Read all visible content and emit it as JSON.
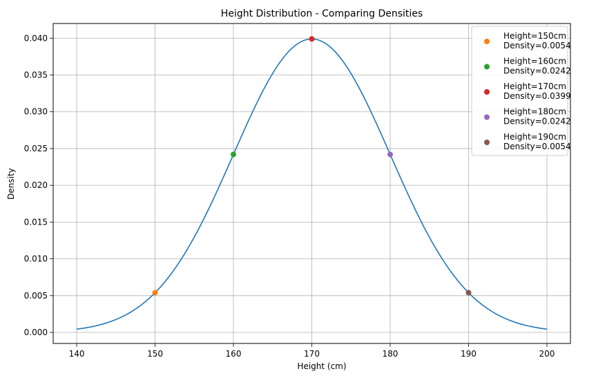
{
  "chart_data": {
    "type": "line",
    "title": "Height Distribution - Comparing Densities",
    "xlabel": "Height (cm)",
    "ylabel": "Density",
    "xlim": [
      137.0,
      203.0
    ],
    "ylim": [
      -0.0015,
      0.042
    ],
    "grid": true,
    "legend_position": "top-right",
    "x_ticks": [
      140,
      150,
      160,
      170,
      180,
      190,
      200
    ],
    "x_tick_labels": [
      "140",
      "150",
      "160",
      "170",
      "180",
      "190",
      "200"
    ],
    "y_ticks": [
      0.0,
      0.005,
      0.01,
      0.015,
      0.02,
      0.025,
      0.03,
      0.035,
      0.04
    ],
    "y_tick_labels": [
      "0.000",
      "0.005",
      "0.010",
      "0.015",
      "0.020",
      "0.025",
      "0.030",
      "0.035",
      "0.040"
    ],
    "curve": {
      "distribution": "normal",
      "mean": 170,
      "std": 10,
      "x_range": [
        140,
        200
      ],
      "color": "#1f77b4"
    },
    "points": [
      {
        "x": 150,
        "y": 0.0054,
        "label_line1": "Height=150cm",
        "label_line2": "Density=0.0054",
        "color": "#ff7f0e"
      },
      {
        "x": 160,
        "y": 0.0242,
        "label_line1": "Height=160cm",
        "label_line2": "Density=0.0242",
        "color": "#2ca02c"
      },
      {
        "x": 170,
        "y": 0.0399,
        "label_line1": "Height=170cm",
        "label_line2": "Density=0.0399",
        "color": "#d62728"
      },
      {
        "x": 180,
        "y": 0.0242,
        "label_line1": "Height=180cm",
        "label_line2": "Density=0.0242",
        "color": "#9467bd"
      },
      {
        "x": 190,
        "y": 0.0054,
        "label_line1": "Height=190cm",
        "label_line2": "Density=0.0054",
        "color": "#8c564b"
      }
    ]
  }
}
